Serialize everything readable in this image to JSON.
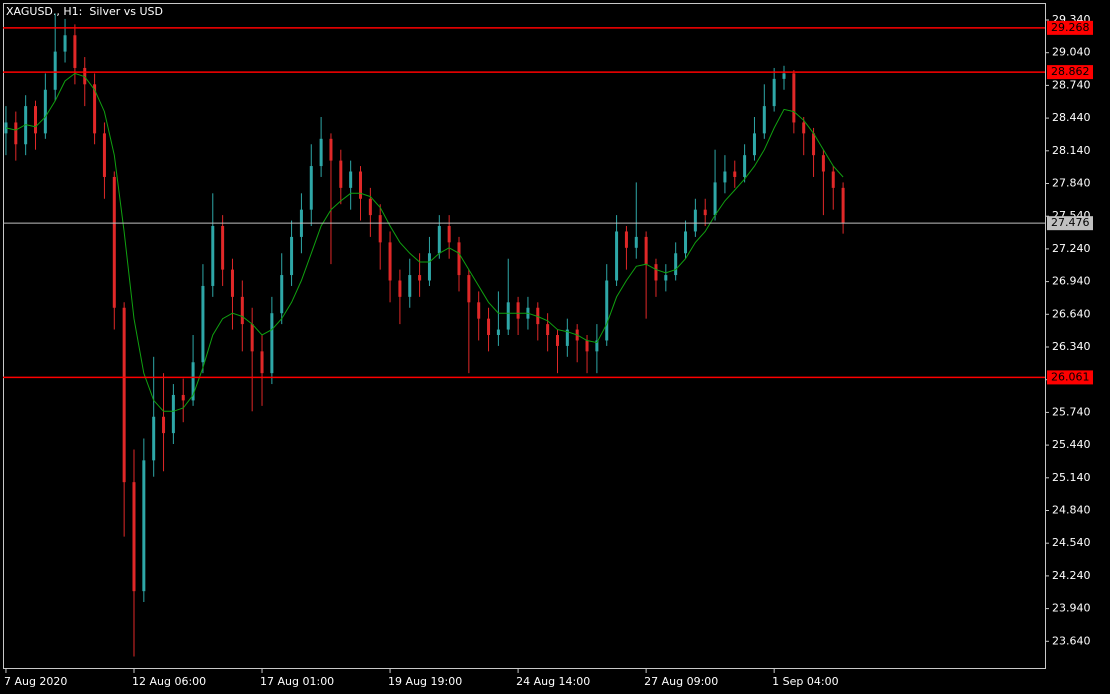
{
  "chart_data": {
    "type": "candlestick",
    "title": "XAGUSD., H1:  Silver vs USD",
    "up_color": "#2ea7a7",
    "down_color": "#e02828",
    "ohlc": [
      [
        28.3,
        28.55,
        28.1,
        28.4
      ],
      [
        28.4,
        28.5,
        28.05,
        28.2
      ],
      [
        28.2,
        28.65,
        28.1,
        28.55
      ],
      [
        28.55,
        28.6,
        28.15,
        28.3
      ],
      [
        28.3,
        28.85,
        28.25,
        28.7
      ],
      [
        28.7,
        29.4,
        28.6,
        29.05
      ],
      [
        29.05,
        29.35,
        28.95,
        29.2
      ],
      [
        29.2,
        29.3,
        28.75,
        28.9
      ],
      [
        28.9,
        29.0,
        28.55,
        28.75
      ],
      [
        28.75,
        28.85,
        28.2,
        28.3
      ],
      [
        28.3,
        28.4,
        27.7,
        27.9
      ],
      [
        27.9,
        27.95,
        26.5,
        26.7
      ],
      [
        26.7,
        26.75,
        24.6,
        25.1
      ],
      [
        25.1,
        25.4,
        23.5,
        24.1
      ],
      [
        24.1,
        25.5,
        24.0,
        25.3
      ],
      [
        25.3,
        26.25,
        25.15,
        25.7
      ],
      [
        25.7,
        26.1,
        25.2,
        25.55
      ],
      [
        25.55,
        26.0,
        25.45,
        25.9
      ],
      [
        25.9,
        26.05,
        25.65,
        25.85
      ],
      [
        25.85,
        26.45,
        25.8,
        26.2
      ],
      [
        26.2,
        27.1,
        26.1,
        26.9
      ],
      [
        26.9,
        27.75,
        26.8,
        27.45
      ],
      [
        27.45,
        27.55,
        26.9,
        27.05
      ],
      [
        27.05,
        27.15,
        26.5,
        26.8
      ],
      [
        26.8,
        26.95,
        26.3,
        26.55
      ],
      [
        26.55,
        26.7,
        25.75,
        26.3
      ],
      [
        26.3,
        26.45,
        25.8,
        26.1
      ],
      [
        26.1,
        26.8,
        26.0,
        26.65
      ],
      [
        26.65,
        27.2,
        26.55,
        27.0
      ],
      [
        27.0,
        27.5,
        26.9,
        27.35
      ],
      [
        27.35,
        27.75,
        27.2,
        27.6
      ],
      [
        27.6,
        28.2,
        27.45,
        28.0
      ],
      [
        28.0,
        28.45,
        27.9,
        28.25
      ],
      [
        28.25,
        28.3,
        27.1,
        28.05
      ],
      [
        28.05,
        28.15,
        27.65,
        27.8
      ],
      [
        27.8,
        28.05,
        27.6,
        27.95
      ],
      [
        27.95,
        28.0,
        27.5,
        27.7
      ],
      [
        27.7,
        27.8,
        27.35,
        27.55
      ],
      [
        27.55,
        27.65,
        27.05,
        27.3
      ],
      [
        27.3,
        27.4,
        26.75,
        26.95
      ],
      [
        26.95,
        27.05,
        26.55,
        26.8
      ],
      [
        26.8,
        27.15,
        26.7,
        27.0
      ],
      [
        27.0,
        27.2,
        26.8,
        26.95
      ],
      [
        26.95,
        27.35,
        26.9,
        27.2
      ],
      [
        27.2,
        27.55,
        27.15,
        27.45
      ],
      [
        27.45,
        27.55,
        27.15,
        27.3
      ],
      [
        27.3,
        27.35,
        26.85,
        27.0
      ],
      [
        27.0,
        27.05,
        26.1,
        26.75
      ],
      [
        26.75,
        26.85,
        26.4,
        26.6
      ],
      [
        26.6,
        26.7,
        26.3,
        26.45
      ],
      [
        26.45,
        26.85,
        26.35,
        26.5
      ],
      [
        26.5,
        27.15,
        26.45,
        26.75
      ],
      [
        26.75,
        26.8,
        26.45,
        26.6
      ],
      [
        26.6,
        26.8,
        26.5,
        26.7
      ],
      [
        26.7,
        26.75,
        26.4,
        26.55
      ],
      [
        26.55,
        26.65,
        26.3,
        26.45
      ],
      [
        26.45,
        26.5,
        26.1,
        26.35
      ],
      [
        26.35,
        26.6,
        26.25,
        26.5
      ],
      [
        26.5,
        26.55,
        26.2,
        26.4
      ],
      [
        26.4,
        26.45,
        26.1,
        26.3
      ],
      [
        26.3,
        26.55,
        26.1,
        26.4
      ],
      [
        26.4,
        27.1,
        26.35,
        26.95
      ],
      [
        26.95,
        27.55,
        26.9,
        27.4
      ],
      [
        27.4,
        27.45,
        27.05,
        27.25
      ],
      [
        27.25,
        27.85,
        27.15,
        27.35
      ],
      [
        27.35,
        27.4,
        26.6,
        27.1
      ],
      [
        27.1,
        27.15,
        26.8,
        26.95
      ],
      [
        26.95,
        27.1,
        26.85,
        27.0
      ],
      [
        27.0,
        27.3,
        26.95,
        27.2
      ],
      [
        27.2,
        27.5,
        27.15,
        27.4
      ],
      [
        27.4,
        27.7,
        27.35,
        27.6
      ],
      [
        27.6,
        27.7,
        27.45,
        27.55
      ],
      [
        27.55,
        28.15,
        27.5,
        27.85
      ],
      [
        27.85,
        28.1,
        27.75,
        27.95
      ],
      [
        27.95,
        28.05,
        27.8,
        27.9
      ],
      [
        27.9,
        28.2,
        27.85,
        28.1
      ],
      [
        28.1,
        28.45,
        28.05,
        28.3
      ],
      [
        28.3,
        28.75,
        28.25,
        28.55
      ],
      [
        28.55,
        28.9,
        28.5,
        28.8
      ],
      [
        28.8,
        28.92,
        28.7,
        28.85
      ],
      [
        28.85,
        28.88,
        28.3,
        28.4
      ],
      [
        28.4,
        28.45,
        28.1,
        28.3
      ],
      [
        28.3,
        28.35,
        27.9,
        28.1
      ],
      [
        28.1,
        28.15,
        27.55,
        27.95
      ],
      [
        27.95,
        28.0,
        27.6,
        27.8
      ],
      [
        27.8,
        27.85,
        27.38,
        27.476
      ]
    ],
    "ma": {
      "color": "#10a010",
      "values": [
        28.35,
        28.33,
        28.38,
        28.36,
        28.45,
        28.6,
        28.78,
        28.85,
        28.82,
        28.7,
        28.5,
        28.1,
        27.4,
        26.6,
        26.1,
        25.85,
        25.75,
        25.75,
        25.78,
        25.9,
        26.15,
        26.45,
        26.6,
        26.65,
        26.62,
        26.55,
        26.45,
        26.5,
        26.6,
        26.75,
        26.95,
        27.2,
        27.45,
        27.6,
        27.68,
        27.75,
        27.75,
        27.72,
        27.62,
        27.45,
        27.3,
        27.2,
        27.12,
        27.12,
        27.2,
        27.25,
        27.2,
        27.05,
        26.9,
        26.75,
        26.65,
        26.65,
        26.65,
        26.65,
        26.62,
        26.58,
        26.5,
        26.48,
        26.45,
        26.4,
        26.38,
        26.55,
        26.8,
        26.95,
        27.08,
        27.1,
        27.05,
        27.02,
        27.05,
        27.15,
        27.3,
        27.4,
        27.55,
        27.68,
        27.78,
        27.88,
        28.0,
        28.15,
        28.35,
        28.52,
        28.5,
        28.42,
        28.3,
        28.15,
        28.0,
        27.9
      ]
    },
    "levels": [
      {
        "value": 29.268,
        "color": "#ff0000"
      },
      {
        "value": 28.862,
        "color": "#ff0000"
      },
      {
        "value": 26.061,
        "color": "#ff0000"
      }
    ],
    "last_price": {
      "value": 27.476,
      "color": "#c0c0c0"
    },
    "xlim": [
      -0.3,
      105.5
    ],
    "xticks": [
      {
        "value": 0,
        "label": "7 Aug 2020"
      },
      {
        "value": 13,
        "label": "12 Aug 06:00"
      },
      {
        "value": 26,
        "label": "17 Aug 01:00"
      },
      {
        "value": 39,
        "label": "19 Aug 19:00"
      },
      {
        "value": 52,
        "label": "24 Aug 14:00"
      },
      {
        "value": 65,
        "label": "27 Aug 09:00"
      },
      {
        "value": 78,
        "label": "1 Sep 04:00"
      }
    ],
    "ylim": [
      23.395,
      29.496
    ],
    "yticks": [
      {
        "value": 29.34,
        "label": "29.340"
      },
      {
        "value": 29.04,
        "label": "29.040"
      },
      {
        "value": 28.74,
        "label": "28.740"
      },
      {
        "value": 28.44,
        "label": "28.440"
      },
      {
        "value": 28.14,
        "label": "28.140"
      },
      {
        "value": 27.84,
        "label": "27.840"
      },
      {
        "value": 27.54,
        "label": "27.540"
      },
      {
        "value": 27.24,
        "label": "27.240"
      },
      {
        "value": 26.94,
        "label": "26.940"
      },
      {
        "value": 26.64,
        "label": "26.640"
      },
      {
        "value": 26.34,
        "label": "26.340"
      },
      {
        "value": 26.04,
        "label": "26.040"
      },
      {
        "value": 25.74,
        "label": "25.740"
      },
      {
        "value": 25.44,
        "label": "25.440"
      },
      {
        "value": 25.14,
        "label": "25.140"
      },
      {
        "value": 24.84,
        "label": "24.840"
      },
      {
        "value": 24.54,
        "label": "24.540"
      },
      {
        "value": 24.24,
        "label": "24.240"
      },
      {
        "value": 23.94,
        "label": "23.940"
      },
      {
        "value": 23.64,
        "label": "23.640"
      }
    ]
  }
}
